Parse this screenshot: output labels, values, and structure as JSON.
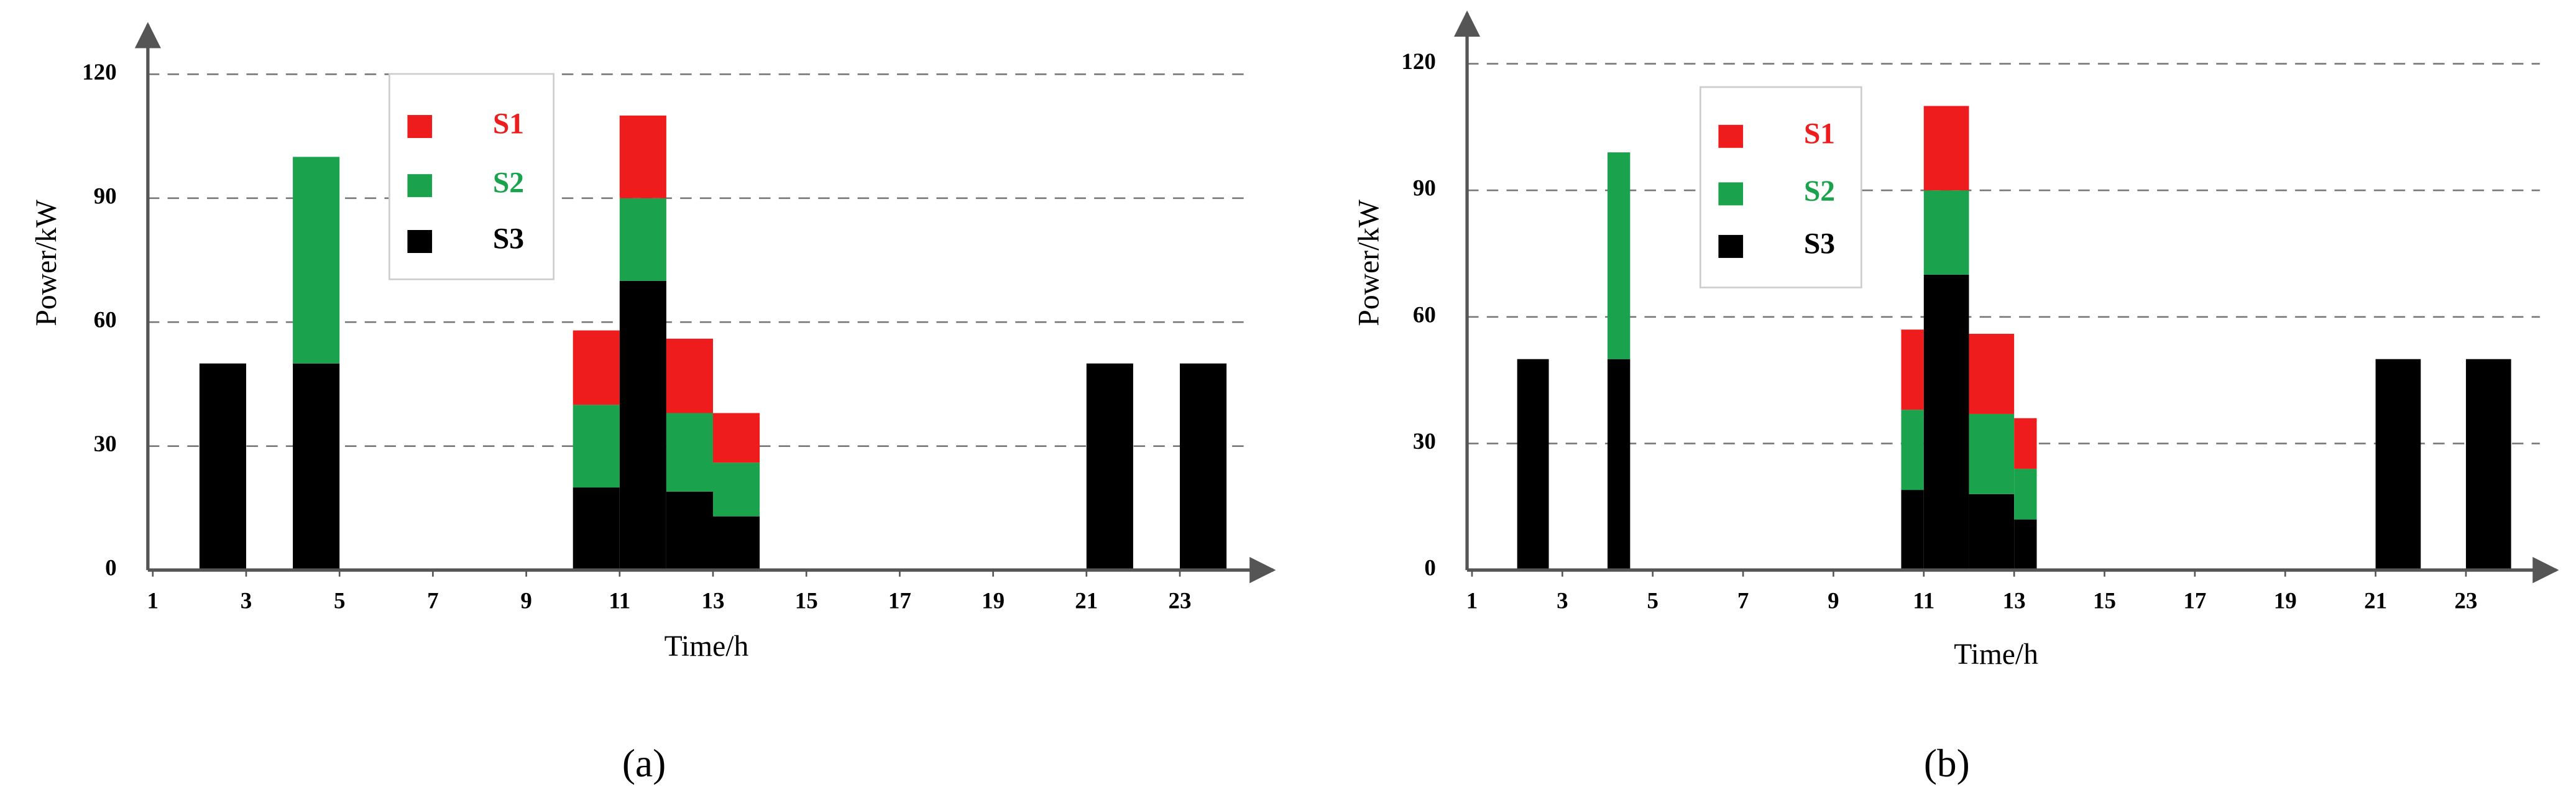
{
  "chart_data": [
    {
      "type": "bar",
      "stacked": true,
      "subplot_label": "(a)",
      "xlabel": "Time/h",
      "ylabel": "Power/kW",
      "x": [
        2,
        4,
        10,
        11,
        12,
        13,
        21,
        23
      ],
      "x_end": [
        3,
        5,
        11,
        12,
        13,
        14,
        22,
        24
      ],
      "series": [
        {
          "name": "S1",
          "color": "#ee1c1c",
          "values": [
            0,
            0,
            18,
            20,
            18,
            12,
            0,
            0
          ]
        },
        {
          "name": "S2",
          "color": "#1aa24c",
          "values": [
            0,
            50,
            20,
            20,
            19,
            13,
            0,
            0
          ]
        },
        {
          "name": "S3",
          "color": "#000000",
          "values": [
            50,
            50,
            20,
            70,
            19,
            13,
            50,
            50
          ]
        }
      ],
      "xlim": [
        1,
        25
      ],
      "xticks": [
        1,
        3,
        5,
        7,
        9,
        11,
        13,
        15,
        17,
        19,
        21,
        23
      ],
      "ylim": [
        0,
        132
      ],
      "yticks": [
        0,
        30,
        60,
        90,
        120
      ],
      "grid": true,
      "legend": "upper left"
    },
    {
      "type": "bar",
      "stacked": true,
      "subplot_label": "(b)",
      "xlabel": "Time/h",
      "ylabel": "Power/kW",
      "x": [
        2,
        4,
        10.5,
        11,
        12,
        13,
        21,
        23
      ],
      "x_end": [
        2.7,
        4.5,
        11,
        12,
        13,
        13.5,
        22,
        24
      ],
      "series": [
        {
          "name": "S1",
          "color": "#ee1c1c",
          "values": [
            0,
            0,
            19,
            20,
            19,
            12,
            0,
            0
          ]
        },
        {
          "name": "S2",
          "color": "#1aa24c",
          "values": [
            0,
            49,
            19,
            20,
            19,
            12,
            0,
            0
          ]
        },
        {
          "name": "S3",
          "color": "#000000",
          "values": [
            50,
            50,
            19,
            70,
            18,
            12,
            50,
            50
          ]
        }
      ],
      "xlim": [
        1,
        25
      ],
      "xticks": [
        1,
        3,
        5,
        7,
        9,
        11,
        13,
        15,
        17,
        19,
        21,
        23
      ],
      "ylim": [
        0,
        132
      ],
      "yticks": [
        0,
        30,
        60,
        90,
        120
      ],
      "grid": true,
      "legend": "upper left"
    }
  ]
}
